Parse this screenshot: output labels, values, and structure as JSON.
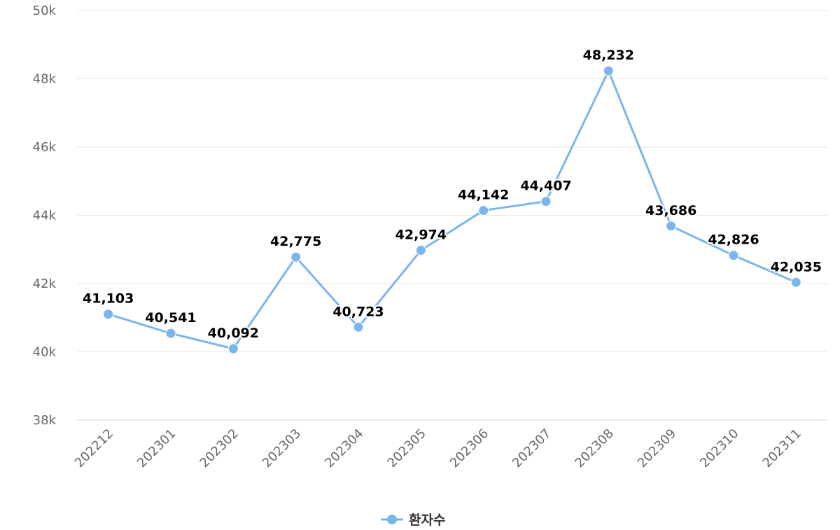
{
  "chart_data": {
    "type": "line",
    "title": "",
    "xlabel": "",
    "ylabel": "",
    "categories": [
      "202212",
      "202301",
      "202302",
      "202303",
      "202304",
      "202305",
      "202306",
      "202307",
      "202308",
      "202309",
      "202310",
      "202311"
    ],
    "series": [
      {
        "name": "환자수",
        "color": "#7cb5ec",
        "values": [
          41103,
          40541,
          40092,
          42775,
          40723,
          42974,
          44142,
          44407,
          48232,
          43686,
          42826,
          42035
        ],
        "labels": [
          "41,103",
          "40,541",
          "40,092",
          "42,775",
          "40,723",
          "42,974",
          "44,142",
          "44,407",
          "48,232",
          "43,686",
          "42,826",
          "42,035"
        ]
      }
    ],
    "ylim": [
      38000,
      50000
    ],
    "yticks": [
      {
        "value": 38000,
        "label": "38k"
      },
      {
        "value": 40000,
        "label": "40k"
      },
      {
        "value": 42000,
        "label": "42k"
      },
      {
        "value": 44000,
        "label": "44k"
      },
      {
        "value": 46000,
        "label": "46k"
      },
      {
        "value": 48000,
        "label": "48k"
      },
      {
        "value": 50000,
        "label": "50k"
      }
    ],
    "grid": true,
    "legend": "bottom-center"
  }
}
